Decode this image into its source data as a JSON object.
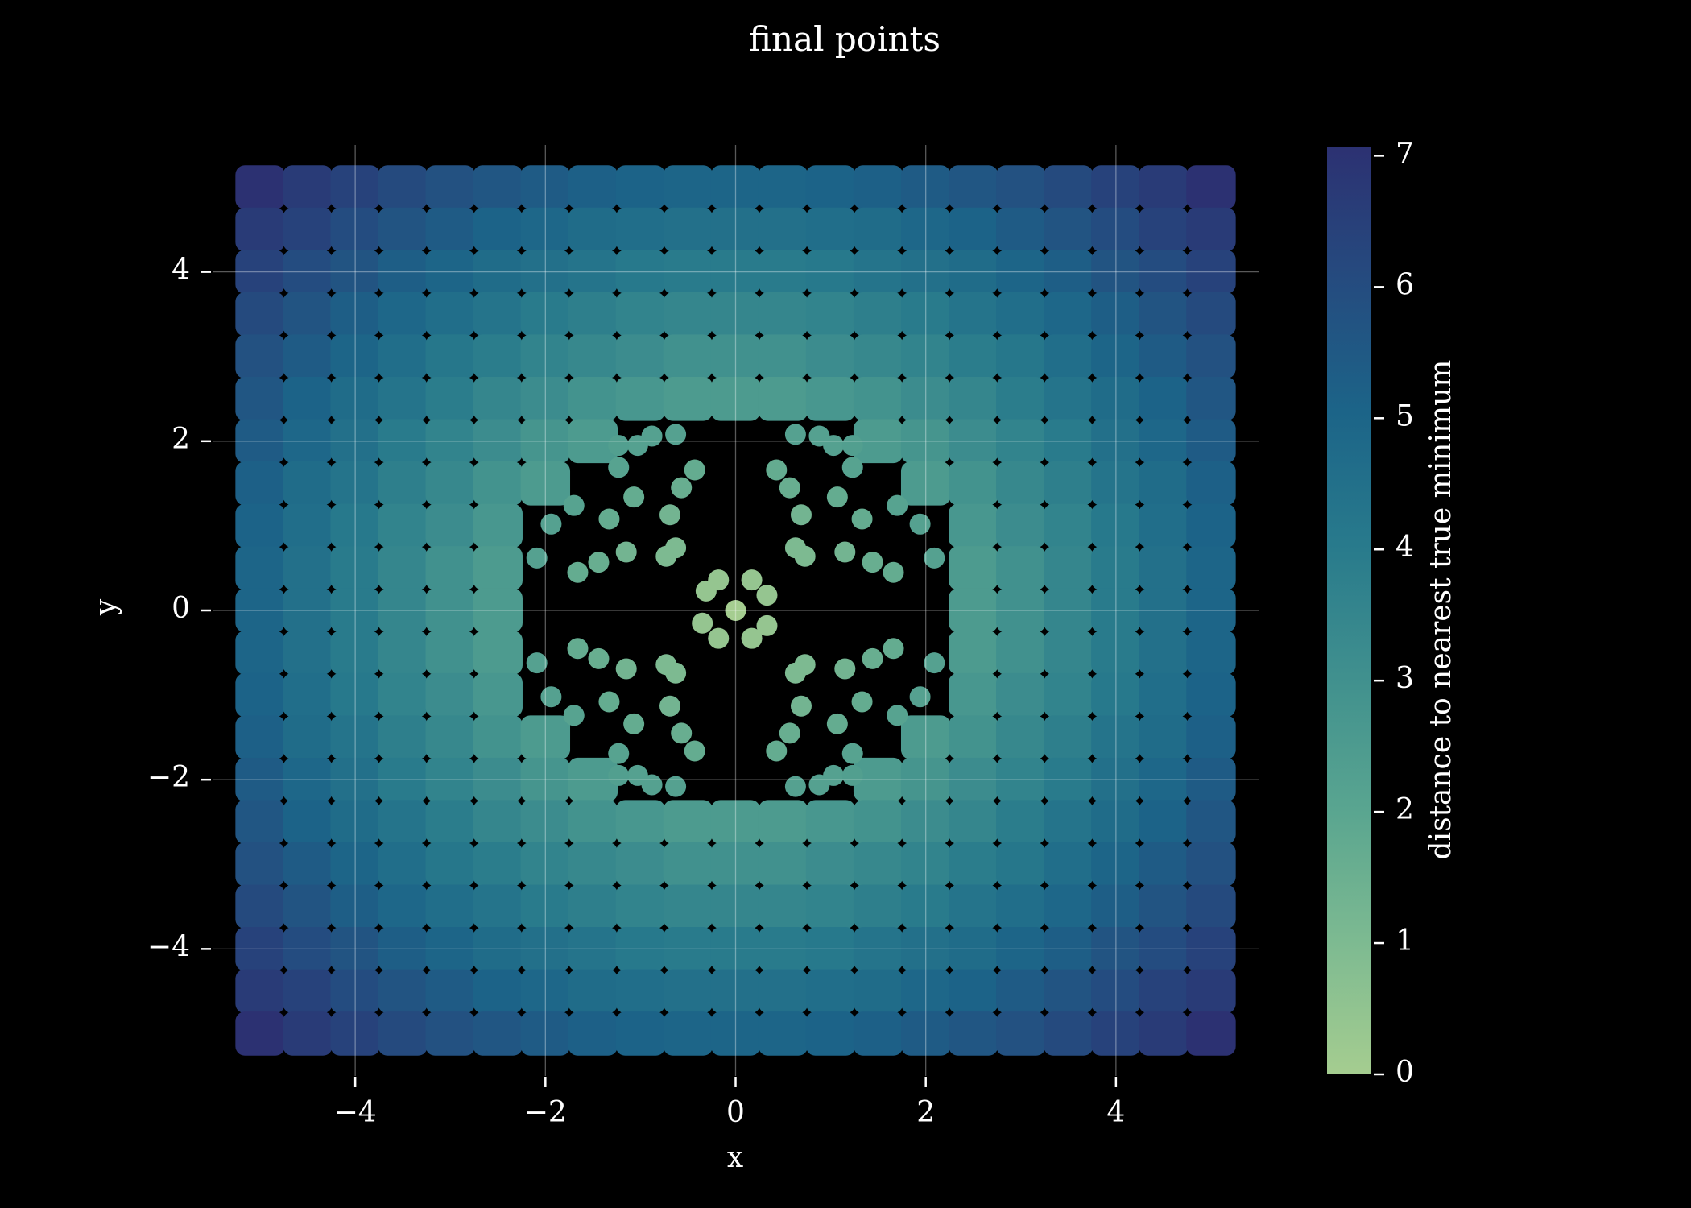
{
  "chart_data": {
    "type": "scatter",
    "title": "final points",
    "xlabel": "x",
    "ylabel": "y",
    "colorbar_label": "distance to nearest true minimum",
    "xlim": [
      -5.5,
      5.5
    ],
    "ylim": [
      -5.5,
      5.5
    ],
    "xticks": [
      {
        "value": -4,
        "label": "−4"
      },
      {
        "value": -2,
        "label": "−2"
      },
      0,
      2,
      4
    ],
    "yticks": [
      {
        "value": -4,
        "label": "−4"
      },
      {
        "value": -2,
        "label": "−2"
      },
      0,
      2,
      4
    ],
    "grid": true,
    "clim": [
      0,
      7.07
    ],
    "cticks": [
      0,
      1,
      2,
      3,
      4,
      5,
      6,
      7
    ],
    "colormap": [
      "#a5cd90",
      "#7dba91",
      "#59a590",
      "#40908e",
      "#287a8c",
      "#1c6488",
      "#254b7f",
      "#2c3172"
    ],
    "field": {
      "x": [
        -5,
        -4.5,
        -4,
        -3.5,
        -3,
        -2.5,
        -2,
        -1.5,
        -1,
        -0.5,
        0,
        0.5,
        1,
        1.5,
        2,
        2.5,
        3,
        3.5,
        4,
        4.5,
        5
      ],
      "y": [
        5,
        4.5,
        4,
        3.5,
        3,
        2.5,
        2,
        1.5,
        1,
        0.5,
        0,
        -0.5,
        -1,
        -1.5,
        -2,
        -2.5,
        -3,
        -3.5,
        -4,
        -4.5,
        -5
      ],
      "values": [
        [
          7.1,
          6.7,
          6.4,
          6.1,
          5.8,
          5.6,
          5.4,
          5.2,
          5.1,
          5.0,
          5.0,
          5.0,
          5.1,
          5.2,
          5.4,
          5.6,
          5.8,
          6.1,
          6.4,
          6.7,
          7.1
        ],
        [
          6.7,
          6.4,
          6.0,
          5.7,
          5.4,
          5.1,
          4.9,
          4.7,
          4.6,
          4.5,
          4.5,
          4.5,
          4.6,
          4.7,
          4.9,
          5.1,
          5.4,
          5.7,
          6.0,
          6.4,
          6.7
        ],
        [
          6.4,
          6.0,
          5.7,
          5.3,
          5.0,
          4.7,
          4.5,
          4.3,
          4.1,
          4.0,
          4.0,
          4.0,
          4.1,
          4.3,
          4.5,
          4.7,
          5.0,
          5.3,
          5.7,
          6.0,
          6.4
        ],
        [
          6.1,
          5.7,
          5.3,
          4.9,
          4.6,
          4.3,
          4.0,
          3.8,
          3.6,
          3.5,
          3.5,
          3.5,
          3.6,
          3.8,
          4.0,
          4.3,
          4.6,
          4.9,
          5.3,
          5.7,
          6.1
        ],
        [
          5.8,
          5.4,
          5.0,
          4.6,
          4.2,
          3.9,
          3.6,
          3.4,
          3.2,
          3.0,
          3.0,
          3.0,
          3.2,
          3.4,
          3.6,
          3.9,
          4.2,
          4.6,
          5.0,
          5.4,
          5.8
        ],
        [
          5.6,
          5.1,
          4.7,
          4.3,
          3.9,
          3.5,
          3.2,
          2.9,
          2.7,
          2.5,
          2.5,
          2.5,
          2.7,
          2.9,
          3.2,
          3.5,
          3.9,
          4.3,
          4.7,
          5.1,
          5.6
        ],
        [
          5.4,
          4.9,
          4.5,
          4.0,
          3.6,
          3.2,
          2.8,
          2.5,
          null,
          null,
          null,
          null,
          null,
          2.5,
          2.8,
          3.2,
          3.6,
          4.0,
          4.5,
          4.9,
          5.4
        ],
        [
          5.2,
          4.7,
          4.3,
          3.8,
          3.4,
          2.9,
          2.5,
          null,
          null,
          null,
          null,
          null,
          null,
          null,
          2.5,
          2.9,
          3.4,
          3.8,
          4.3,
          4.7,
          5.2
        ],
        [
          5.1,
          4.6,
          4.1,
          3.6,
          3.2,
          2.7,
          null,
          null,
          null,
          null,
          null,
          null,
          null,
          null,
          null,
          2.7,
          3.2,
          3.6,
          4.1,
          4.6,
          5.1
        ],
        [
          5.0,
          4.5,
          4.0,
          3.5,
          3.0,
          2.5,
          null,
          null,
          null,
          null,
          null,
          null,
          null,
          null,
          null,
          2.5,
          3.0,
          3.5,
          4.0,
          4.5,
          5.0
        ],
        [
          5.0,
          4.5,
          4.0,
          3.5,
          3.0,
          2.5,
          null,
          null,
          null,
          null,
          null,
          null,
          null,
          null,
          null,
          2.5,
          3.0,
          3.5,
          4.0,
          4.5,
          5.0
        ],
        [
          5.0,
          4.5,
          4.0,
          3.5,
          3.0,
          2.5,
          null,
          null,
          null,
          null,
          null,
          null,
          null,
          null,
          null,
          2.5,
          3.0,
          3.5,
          4.0,
          4.5,
          5.0
        ],
        [
          5.1,
          4.6,
          4.1,
          3.6,
          3.2,
          2.7,
          null,
          null,
          null,
          null,
          null,
          null,
          null,
          null,
          null,
          2.7,
          3.2,
          3.6,
          4.1,
          4.6,
          5.1
        ],
        [
          5.2,
          4.7,
          4.3,
          3.8,
          3.4,
          2.9,
          2.5,
          null,
          null,
          null,
          null,
          null,
          null,
          null,
          2.5,
          2.9,
          3.4,
          3.8,
          4.3,
          4.7,
          5.2
        ],
        [
          5.4,
          4.9,
          4.5,
          4.0,
          3.6,
          3.2,
          2.8,
          2.5,
          null,
          null,
          null,
          null,
          null,
          2.5,
          2.8,
          3.2,
          3.6,
          4.0,
          4.5,
          4.9,
          5.4
        ],
        [
          5.6,
          5.1,
          4.7,
          4.3,
          3.9,
          3.5,
          3.2,
          2.9,
          2.7,
          2.5,
          2.5,
          2.5,
          2.7,
          2.9,
          3.2,
          3.5,
          3.9,
          4.3,
          4.7,
          5.1,
          5.6
        ],
        [
          5.8,
          5.4,
          5.0,
          4.6,
          4.2,
          3.9,
          3.6,
          3.4,
          3.2,
          3.0,
          3.0,
          3.0,
          3.2,
          3.4,
          3.6,
          3.9,
          4.2,
          4.6,
          5.0,
          5.4,
          5.8
        ],
        [
          6.1,
          5.7,
          5.3,
          4.9,
          4.6,
          4.3,
          4.0,
          3.8,
          3.6,
          3.5,
          3.5,
          3.5,
          3.6,
          3.8,
          4.0,
          4.3,
          4.6,
          4.9,
          5.3,
          5.7,
          6.1
        ],
        [
          6.4,
          6.0,
          5.7,
          5.3,
          5.0,
          4.7,
          4.5,
          4.3,
          4.1,
          4.0,
          4.0,
          4.0,
          4.1,
          4.3,
          4.5,
          4.7,
          5.0,
          5.3,
          5.7,
          6.0,
          6.4
        ],
        [
          6.7,
          6.4,
          6.0,
          5.7,
          5.4,
          5.1,
          4.9,
          4.7,
          4.6,
          4.5,
          4.5,
          4.5,
          4.6,
          4.7,
          4.9,
          5.1,
          5.4,
          5.7,
          6.0,
          6.4,
          6.7
        ],
        [
          7.1,
          6.7,
          6.4,
          6.1,
          5.8,
          5.6,
          5.4,
          5.2,
          5.1,
          5.0,
          5.0,
          5.0,
          5.1,
          5.2,
          5.4,
          5.6,
          5.8,
          6.1,
          6.4,
          6.7,
          7.1
        ]
      ]
    },
    "points": {
      "x": [
        -0.43,
        -0.57,
        -0.69,
        -0.63,
        -0.73,
        -1.15,
        -1.33,
        -1.07,
        -1.23,
        -1.44,
        -1.66,
        -1.7,
        -2.09,
        -1.94,
        -0.63,
        -0.88,
        -1.03,
        -1.23,
        0.43,
        0.57,
        0.69,
        0.63,
        0.73,
        1.15,
        1.33,
        1.07,
        1.23,
        1.44,
        1.66,
        1.7,
        2.09,
        1.94,
        0.63,
        0.88,
        1.03,
        1.23,
        -0.43,
        -0.57,
        -0.69,
        -0.63,
        -0.73,
        -1.15,
        -1.33,
        -1.07,
        -1.23,
        -1.44,
        -1.66,
        -1.7,
        -2.09,
        -1.94,
        -0.63,
        -0.88,
        -1.03,
        -1.23,
        0.43,
        0.57,
        0.69,
        0.63,
        0.73,
        1.15,
        1.33,
        1.07,
        1.23,
        1.44,
        1.66,
        1.7,
        2.09,
        1.94,
        0.63,
        0.88,
        1.03,
        1.23,
        0,
        -0.18,
        -0.31,
        0.17,
        0.33,
        -0.35,
        -0.18,
        0.17,
        0.33
      ],
      "y": [
        1.66,
        1.45,
        1.13,
        0.74,
        0.64,
        0.69,
        1.08,
        1.34,
        1.69,
        0.57,
        0.45,
        1.24,
        0.62,
        1.02,
        2.08,
        2.06,
        1.95,
        1.95,
        1.66,
        1.45,
        1.13,
        0.74,
        0.64,
        0.69,
        1.08,
        1.34,
        1.69,
        0.57,
        0.45,
        1.24,
        0.62,
        1.02,
        2.08,
        2.06,
        1.95,
        1.95,
        -1.66,
        -1.45,
        -1.13,
        -0.74,
        -0.64,
        -0.69,
        -1.08,
        -1.34,
        -1.69,
        -0.57,
        -0.45,
        -1.24,
        -0.62,
        -1.02,
        -2.08,
        -2.06,
        -1.95,
        -1.95,
        -1.66,
        -1.45,
        -1.13,
        -0.74,
        -0.64,
        -0.69,
        -1.08,
        -1.34,
        -1.69,
        -0.57,
        -0.45,
        -1.24,
        -0.62,
        -1.02,
        -2.08,
        -2.06,
        -1.95,
        -1.95,
        0,
        0.36,
        0.23,
        0.36,
        0.18,
        -0.15,
        -0.33,
        -0.33,
        -0.18
      ],
      "values": [
        1.7,
        1.6,
        1.3,
        1.0,
        1.0,
        1.3,
        1.7,
        1.7,
        2.1,
        1.6,
        1.7,
        2.1,
        2.2,
        2.2,
        2.2,
        2.2,
        2.2,
        2.3,
        1.7,
        1.6,
        1.3,
        1.0,
        1.0,
        1.3,
        1.7,
        1.7,
        2.1,
        1.6,
        1.7,
        2.1,
        2.2,
        2.2,
        2.2,
        2.2,
        2.2,
        2.3,
        1.7,
        1.6,
        1.3,
        1.0,
        1.0,
        1.3,
        1.7,
        1.7,
        2.1,
        1.6,
        1.7,
        2.1,
        2.2,
        2.2,
        2.2,
        2.2,
        2.2,
        2.3,
        1.7,
        1.6,
        1.3,
        1.0,
        1.0,
        1.3,
        1.7,
        1.7,
        2.1,
        1.6,
        1.7,
        2.1,
        2.2,
        2.2,
        2.2,
        2.2,
        2.2,
        2.3,
        0,
        0.4,
        0.4,
        0.4,
        0.4,
        0.4,
        0.4,
        0.4,
        0.4
      ]
    }
  }
}
